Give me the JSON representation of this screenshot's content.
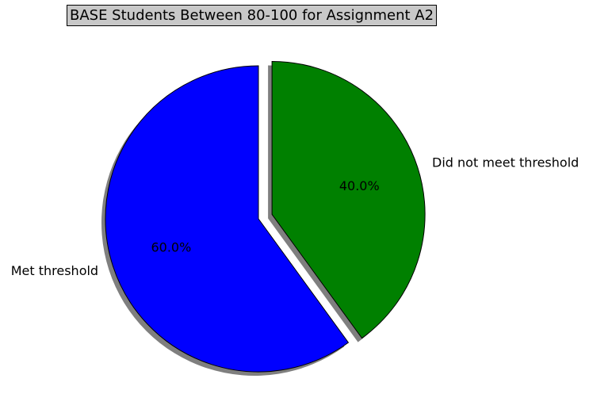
{
  "chart_data": {
    "type": "pie",
    "title": "BASE Students Between 80-100 for Assignment A2",
    "slices": [
      {
        "label": "Met threshold",
        "value": 60.0,
        "pct_label": "60.0%",
        "color": "#0000ff",
        "exploded": false
      },
      {
        "label": "Did not meet threshold",
        "value": 40.0,
        "pct_label": "40.0%",
        "color": "#008000",
        "exploded": true
      }
    ],
    "start_angle_deg": 90,
    "direction": "counterclockwise",
    "shadow": true,
    "title_box_color": "#c8c8c8"
  }
}
